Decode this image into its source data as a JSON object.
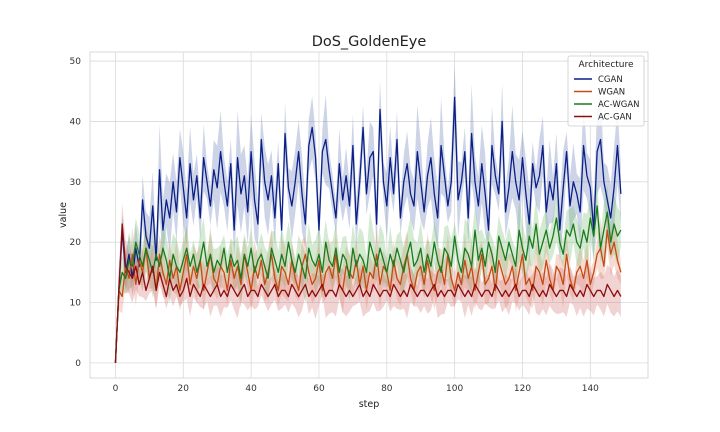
{
  "chart_data": {
    "type": "line",
    "title": "DoS_GoldenEye",
    "xlabel": "step",
    "ylabel": "value",
    "xlim": [
      -7.5,
      157
    ],
    "ylim": [
      -2.5,
      51.5
    ],
    "xticks": [
      0,
      20,
      40,
      60,
      80,
      100,
      120,
      140
    ],
    "yticks": [
      0,
      10,
      20,
      30,
      40,
      50
    ],
    "grid": true,
    "confidence_band": true,
    "legend": {
      "title": "Architecture",
      "placement": "top-right"
    },
    "series": [
      {
        "name": "CGAN",
        "color": "#0c1f87",
        "band_color": "#5a6fb0",
        "x": [
          0,
          1,
          2,
          3,
          4,
          5,
          6,
          7,
          8,
          9,
          10,
          11,
          12,
          13,
          14,
          15,
          16,
          17,
          18,
          19,
          20,
          21,
          22,
          23,
          24,
          25,
          26,
          27,
          28,
          29,
          30,
          31,
          32,
          33,
          34,
          35,
          36,
          37,
          38,
          39,
          40,
          41,
          42,
          43,
          44,
          45,
          46,
          47,
          48,
          49,
          50,
          51,
          52,
          53,
          54,
          55,
          56,
          57,
          58,
          59,
          60,
          61,
          62,
          63,
          64,
          65,
          66,
          67,
          68,
          69,
          70,
          71,
          72,
          73,
          74,
          75,
          76,
          77,
          78,
          79,
          80,
          81,
          82,
          83,
          84,
          85,
          86,
          87,
          88,
          89,
          90,
          91,
          92,
          93,
          94,
          95,
          96,
          97,
          98,
          99,
          100,
          101,
          102,
          103,
          104,
          105,
          106,
          107,
          108,
          109,
          110,
          111,
          112,
          113,
          114,
          115,
          116,
          117,
          118,
          119,
          120,
          121,
          122,
          123,
          124,
          125,
          126,
          127,
          128,
          129,
          130,
          131,
          132,
          133,
          134,
          135,
          136,
          137,
          138,
          139,
          140,
          141,
          142,
          143,
          144,
          145,
          146,
          147,
          148,
          149
        ],
        "values": [
          0,
          12,
          22,
          15,
          18,
          14,
          19,
          16,
          27,
          21,
          19,
          26,
          17,
          32,
          22,
          27,
          24,
          30,
          25,
          34,
          29,
          24,
          33,
          27,
          31,
          24,
          34,
          30,
          26,
          32,
          29,
          35,
          30,
          26,
          33,
          22,
          34,
          28,
          31,
          25,
          35,
          27,
          23,
          37,
          30,
          27,
          31,
          24,
          33,
          22,
          38,
          29,
          26,
          30,
          35,
          28,
          23,
          36,
          39,
          34,
          22,
          35,
          37,
          32,
          28,
          24,
          33,
          27,
          31,
          26,
          36,
          23,
          30,
          39,
          28,
          34,
          35,
          23,
          42,
          30,
          26,
          34,
          28,
          37,
          24,
          30,
          33,
          28,
          26,
          35,
          30,
          25,
          31,
          34,
          28,
          24,
          36,
          31,
          26,
          30,
          44,
          27,
          30,
          35,
          24,
          38,
          30,
          26,
          33,
          28,
          22,
          36,
          31,
          28,
          40,
          25,
          29,
          35,
          30,
          27,
          34,
          28,
          23,
          33,
          29,
          31,
          36,
          25,
          30,
          27,
          33,
          22,
          29,
          35,
          26,
          30,
          28,
          25,
          36,
          31,
          29,
          22,
          35,
          37,
          30,
          27,
          24,
          29,
          36,
          28
        ]
      },
      {
        "name": "WGAN",
        "color": "#c64a12",
        "band_color": "#e3876a",
        "x": [
          0,
          1,
          2,
          3,
          4,
          5,
          6,
          7,
          8,
          9,
          10,
          11,
          12,
          13,
          14,
          15,
          16,
          17,
          18,
          19,
          20,
          21,
          22,
          23,
          24,
          25,
          26,
          27,
          28,
          29,
          30,
          31,
          32,
          33,
          34,
          35,
          36,
          37,
          38,
          39,
          40,
          41,
          42,
          43,
          44,
          45,
          46,
          47,
          48,
          49,
          50,
          51,
          52,
          53,
          54,
          55,
          56,
          57,
          58,
          59,
          60,
          61,
          62,
          63,
          64,
          65,
          66,
          67,
          68,
          69,
          70,
          71,
          72,
          73,
          74,
          75,
          76,
          77,
          78,
          79,
          80,
          81,
          82,
          83,
          84,
          85,
          86,
          87,
          88,
          89,
          90,
          91,
          92,
          93,
          94,
          95,
          96,
          97,
          98,
          99,
          100,
          101,
          102,
          103,
          104,
          105,
          106,
          107,
          108,
          109,
          110,
          111,
          112,
          113,
          114,
          115,
          116,
          117,
          118,
          119,
          120,
          121,
          122,
          123,
          124,
          125,
          126,
          127,
          128,
          129,
          130,
          131,
          132,
          133,
          134,
          135,
          136,
          137,
          138,
          139,
          140,
          141,
          142,
          143,
          144,
          145,
          146,
          147,
          148,
          149
        ],
        "values": [
          0,
          12,
          11,
          16,
          14,
          18,
          13,
          17,
          15,
          19,
          14,
          16,
          12,
          18,
          15,
          13,
          17,
          14,
          16,
          12,
          15,
          18,
          13,
          16,
          14,
          17,
          12,
          15,
          18,
          14,
          13,
          16,
          15,
          12,
          17,
          14,
          16,
          13,
          18,
          15,
          12,
          16,
          14,
          17,
          13,
          15,
          18,
          14,
          12,
          16,
          15,
          13,
          17,
          14,
          12,
          16,
          18,
          15,
          13,
          14,
          17,
          12,
          15,
          16,
          14,
          18,
          13,
          12,
          16,
          15,
          14,
          17,
          13,
          16,
          12,
          15,
          14,
          18,
          13,
          16,
          15,
          12,
          17,
          14,
          13,
          16,
          18,
          14,
          12,
          15,
          16,
          13,
          17,
          14,
          12,
          15,
          16,
          13,
          18,
          14,
          12,
          15,
          13,
          17,
          14,
          16,
          12,
          15,
          18,
          13,
          14,
          16,
          12,
          17,
          15,
          13,
          14,
          16,
          12,
          15,
          18,
          13,
          14,
          12,
          16,
          15,
          13,
          17,
          14,
          12,
          16,
          15,
          13,
          18,
          14,
          12,
          15,
          16,
          14,
          17,
          13,
          15,
          18,
          19,
          16,
          22,
          18,
          20,
          17,
          15
        ]
      },
      {
        "name": "AC-WGAN",
        "color": "#1b7a1e",
        "band_color": "#6fb86a",
        "x": [
          0,
          1,
          2,
          3,
          4,
          5,
          6,
          7,
          8,
          9,
          10,
          11,
          12,
          13,
          14,
          15,
          16,
          17,
          18,
          19,
          20,
          21,
          22,
          23,
          24,
          25,
          26,
          27,
          28,
          29,
          30,
          31,
          32,
          33,
          34,
          35,
          36,
          37,
          38,
          39,
          40,
          41,
          42,
          43,
          44,
          45,
          46,
          47,
          48,
          49,
          50,
          51,
          52,
          53,
          54,
          55,
          56,
          57,
          58,
          59,
          60,
          61,
          62,
          63,
          64,
          65,
          66,
          67,
          68,
          69,
          70,
          71,
          72,
          73,
          74,
          75,
          76,
          77,
          78,
          79,
          80,
          81,
          82,
          83,
          84,
          85,
          86,
          87,
          88,
          89,
          90,
          91,
          92,
          93,
          94,
          95,
          96,
          97,
          98,
          99,
          100,
          101,
          102,
          103,
          104,
          105,
          106,
          107,
          108,
          109,
          110,
          111,
          112,
          113,
          114,
          115,
          116,
          117,
          118,
          119,
          120,
          121,
          122,
          123,
          124,
          125,
          126,
          127,
          128,
          129,
          130,
          131,
          132,
          133,
          134,
          135,
          136,
          137,
          138,
          139,
          140,
          141,
          142,
          143,
          144,
          145,
          146,
          147,
          148,
          149
        ],
        "values": [
          0,
          12,
          15,
          14,
          17,
          16,
          20,
          18,
          16,
          19,
          17,
          15,
          18,
          16,
          19,
          17,
          14,
          18,
          16,
          15,
          17,
          19,
          16,
          18,
          15,
          17,
          20,
          16,
          18,
          15,
          17,
          16,
          19,
          15,
          18,
          16,
          17,
          14,
          18,
          16,
          19,
          15,
          17,
          18,
          16,
          14,
          19,
          17,
          15,
          18,
          16,
          20,
          17,
          15,
          18,
          16,
          14,
          19,
          17,
          16,
          18,
          15,
          20,
          17,
          16,
          19,
          15,
          18,
          17,
          14,
          19,
          16,
          18,
          17,
          15,
          20,
          18,
          16,
          19,
          17,
          15,
          18,
          16,
          19,
          17,
          15,
          18,
          20,
          16,
          17,
          19,
          15,
          18,
          16,
          20,
          17,
          15,
          19,
          18,
          16,
          21,
          17,
          15,
          19,
          18,
          16,
          22,
          17,
          19,
          16,
          20,
          18,
          15,
          21,
          19,
          17,
          20,
          18,
          16,
          22,
          19,
          17,
          21,
          19,
          23,
          18,
          20,
          22,
          19,
          21,
          24,
          20,
          18,
          22,
          21,
          23,
          20,
          19,
          22,
          20,
          24,
          21,
          26,
          19,
          22,
          25,
          20,
          23,
          21,
          22
        ]
      },
      {
        "name": "AC-GAN",
        "color": "#8b0e0e",
        "band_color": "#d06e6e",
        "x": [
          0,
          1,
          2,
          3,
          4,
          5,
          6,
          7,
          8,
          9,
          10,
          11,
          12,
          13,
          14,
          15,
          16,
          17,
          18,
          19,
          20,
          21,
          22,
          23,
          24,
          25,
          26,
          27,
          28,
          29,
          30,
          31,
          32,
          33,
          34,
          35,
          36,
          37,
          38,
          39,
          40,
          41,
          42,
          43,
          44,
          45,
          46,
          47,
          48,
          49,
          50,
          51,
          52,
          53,
          54,
          55,
          56,
          57,
          58,
          59,
          60,
          61,
          62,
          63,
          64,
          65,
          66,
          67,
          68,
          69,
          70,
          71,
          72,
          73,
          74,
          75,
          76,
          77,
          78,
          79,
          80,
          81,
          82,
          83,
          84,
          85,
          86,
          87,
          88,
          89,
          90,
          91,
          92,
          93,
          94,
          95,
          96,
          97,
          98,
          99,
          100,
          101,
          102,
          103,
          104,
          105,
          106,
          107,
          108,
          109,
          110,
          111,
          112,
          113,
          114,
          115,
          116,
          117,
          118,
          119,
          120,
          121,
          122,
          123,
          124,
          125,
          126,
          127,
          128,
          129,
          130,
          131,
          132,
          133,
          134,
          135,
          136,
          137,
          138,
          139,
          140,
          141,
          142,
          143,
          144,
          145,
          146,
          147,
          148,
          149
        ],
        "values": [
          0,
          12,
          23,
          16,
          15,
          14,
          16,
          13,
          15,
          12,
          14,
          16,
          12,
          15,
          13,
          11,
          14,
          12,
          13,
          11,
          12,
          14,
          11,
          13,
          12,
          11,
          13,
          12,
          11,
          12,
          13,
          11,
          12,
          11,
          13,
          12,
          11,
          12,
          13,
          11,
          12,
          12,
          11,
          13,
          12,
          11,
          12,
          13,
          11,
          12,
          12,
          11,
          13,
          12,
          11,
          12,
          13,
          11,
          12,
          11,
          12,
          13,
          11,
          12,
          12,
          11,
          13,
          12,
          11,
          12,
          11,
          12,
          13,
          11,
          12,
          11,
          13,
          12,
          11,
          12,
          12,
          11,
          13,
          12,
          11,
          12,
          11,
          13,
          12,
          11,
          12,
          12,
          11,
          12,
          13,
          11,
          12,
          11,
          12,
          12,
          11,
          13,
          12,
          11,
          12,
          11,
          13,
          12,
          11,
          12,
          12,
          11,
          13,
          12,
          11,
          12,
          11,
          12,
          13,
          11,
          12,
          12,
          11,
          13,
          12,
          11,
          12,
          11,
          13,
          12,
          11,
          12,
          12,
          11,
          13,
          12,
          11,
          12,
          11,
          13,
          12,
          11,
          12,
          12,
          11,
          13,
          12,
          11,
          12,
          11
        ]
      }
    ]
  }
}
